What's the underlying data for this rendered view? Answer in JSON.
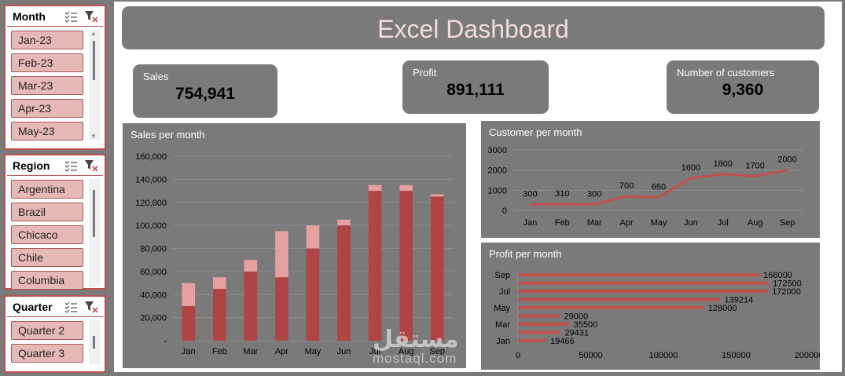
{
  "slicers": {
    "month": {
      "title": "Month",
      "items": [
        "Jan-23",
        "Feb-23",
        "Mar-23",
        "Apr-23",
        "May-23"
      ]
    },
    "region": {
      "title": "Region",
      "items": [
        "Argentina",
        "Brazil",
        "Chicaco",
        "Chile",
        "Columbia"
      ]
    },
    "quarter": {
      "title": "Quarter",
      "items": [
        "Quarter 2",
        "Quarter 3"
      ]
    }
  },
  "dashboard": {
    "title": "Excel Dashboard",
    "kpis": {
      "sales": {
        "label": "Sales",
        "value": "754,941"
      },
      "profit": {
        "label": "Profit",
        "value": "891,111"
      },
      "customers": {
        "label": "Number of customers",
        "value": "9,360"
      }
    }
  },
  "colors": {
    "bar_dark": "#b04444",
    "bar_light": "#e6a0a0",
    "line": "#c0504d",
    "panel": "#7a7a7a"
  },
  "watermark": {
    "arabic": "مستقل",
    "latin": "mostaql.com"
  },
  "chart_data": [
    {
      "id": "sales",
      "type": "bar",
      "title": "Sales per month",
      "categories": [
        "Jan",
        "Feb",
        "Mar",
        "Apr",
        "May",
        "Jun",
        "Jul",
        "Aug",
        "Sep"
      ],
      "series": [
        {
          "name": "base",
          "values": [
            30000,
            45000,
            60000,
            55000,
            80000,
            100000,
            130000,
            130000,
            125000
          ]
        },
        {
          "name": "top",
          "values": [
            20000,
            10000,
            10000,
            40000,
            20000,
            5000,
            5000,
            5000,
            2000
          ]
        }
      ],
      "yticks": [
        "-",
        "20,000",
        "40,000",
        "60,000",
        "80,000",
        "100,000",
        "120,000",
        "140,000",
        "160,000"
      ],
      "ylim": [
        0,
        160000
      ]
    },
    {
      "id": "customers",
      "type": "line",
      "title": "Customer per month",
      "categories": [
        "Jan",
        "Feb",
        "Mar",
        "Apr",
        "May",
        "Jun",
        "Jul",
        "Aug",
        "Sep"
      ],
      "values": [
        300,
        310,
        300,
        700,
        650,
        1600,
        1800,
        1700,
        2000
      ],
      "yticks": [
        "0",
        "1000",
        "2000",
        "3000"
      ],
      "ylim": [
        0,
        3000
      ]
    },
    {
      "id": "profit",
      "type": "bar",
      "orientation": "horizontal",
      "title": "Profit per month",
      "categories": [
        "Jan",
        "Feb",
        "Mar",
        "Apr",
        "May",
        "Jun",
        "Jul",
        "Aug",
        "Sep"
      ],
      "values": [
        19466,
        29431,
        35500,
        29000,
        128000,
        139214,
        172000,
        172500,
        166000
      ],
      "category_labels_shown": [
        "Jan",
        "Mar",
        "May",
        "Jul",
        "Sep"
      ],
      "xticks": [
        "0",
        "50000",
        "100000",
        "150000",
        "200000"
      ],
      "xlim": [
        0,
        200000
      ]
    }
  ]
}
